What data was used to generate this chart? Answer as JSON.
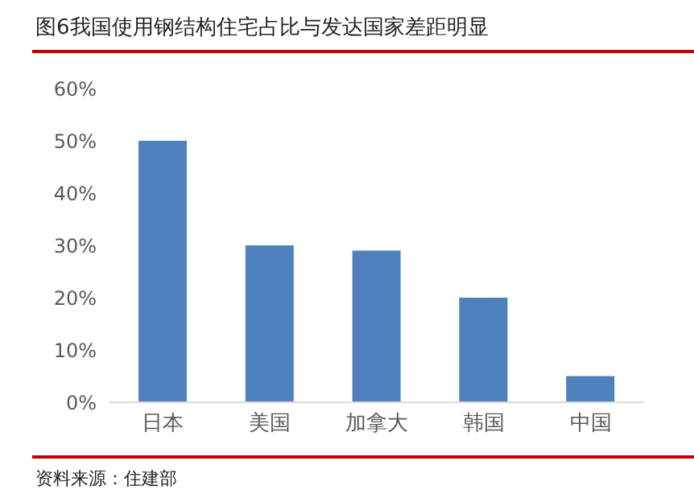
{
  "chart_data": {
    "type": "bar",
    "title": "图6我国使用钢结构住宅占比与发达国家差距明显",
    "categories": [
      "日本",
      "美国",
      "加拿大",
      "韩国",
      "中国"
    ],
    "values": [
      50,
      30,
      29,
      20,
      5
    ],
    "color": "#4f81bd",
    "ylim": [
      0,
      60
    ],
    "yticks": [
      {
        "value": 0,
        "label": "0%"
      },
      {
        "value": 10,
        "label": "10%"
      },
      {
        "value": 20,
        "label": "20%"
      },
      {
        "value": 30,
        "label": "30%"
      },
      {
        "value": 40,
        "label": "40%"
      },
      {
        "value": 50,
        "label": "50%"
      },
      {
        "value": 60,
        "label": "60%"
      }
    ],
    "grid": false,
    "annotations": [
      "资料来源：住建部"
    ]
  }
}
